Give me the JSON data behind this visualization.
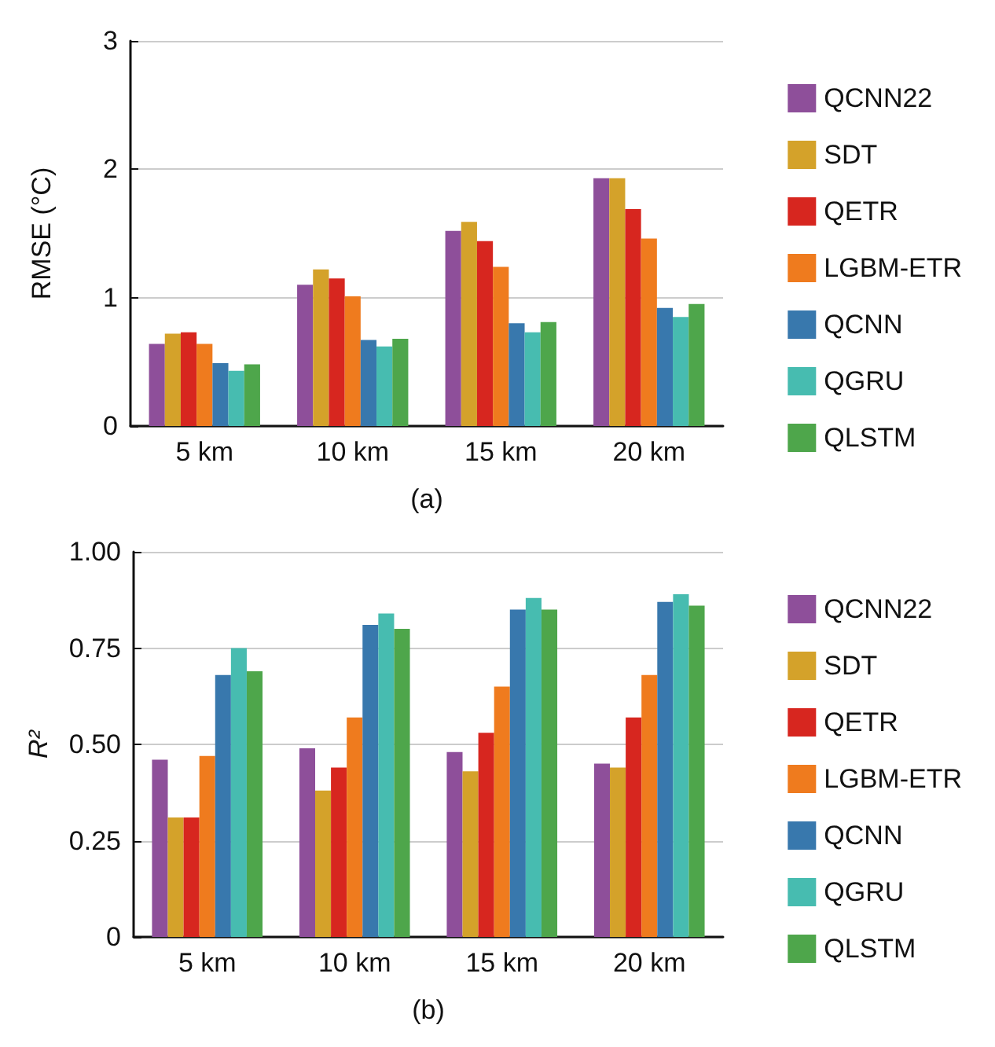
{
  "chart_data": [
    {
      "type": "bar",
      "ylabel": "RMSE (°C)",
      "xlabel": "(a)",
      "categories": [
        "5 km",
        "10 km",
        "15 km",
        "20 km"
      ],
      "ylim": [
        0,
        3
      ],
      "yticks": [
        0,
        1,
        2,
        3
      ],
      "grid": "y",
      "legend": "right",
      "series": [
        {
          "name": "QCNN22",
          "color": "#8e4f9a",
          "values": [
            0.64,
            1.1,
            1.52,
            1.93
          ]
        },
        {
          "name": "SDT",
          "color": "#d4a22a",
          "values": [
            0.72,
            1.22,
            1.59,
            1.93
          ]
        },
        {
          "name": "QETR",
          "color": "#d7261f",
          "values": [
            0.73,
            1.15,
            1.44,
            1.69
          ]
        },
        {
          "name": "LGBM-ETR",
          "color": "#ef7b1e",
          "values": [
            0.64,
            1.01,
            1.24,
            1.46
          ]
        },
        {
          "name": "QCNN",
          "color": "#3878ad",
          "values": [
            0.49,
            0.67,
            0.8,
            0.92
          ]
        },
        {
          "name": "QGRU",
          "color": "#47bcb0",
          "values": [
            0.43,
            0.62,
            0.73,
            0.85
          ]
        },
        {
          "name": "QLSTM",
          "color": "#4ea64b",
          "values": [
            0.48,
            0.68,
            0.81,
            0.95
          ]
        }
      ]
    },
    {
      "type": "bar",
      "ylabel": "R²",
      "xlabel": "(b)",
      "categories": [
        "5 km",
        "10 km",
        "15 km",
        "20 km"
      ],
      "ylim": [
        0,
        1
      ],
      "yticks": [
        {
          "value": 0,
          "label": "0"
        },
        {
          "value": 0.25,
          "label": "0.25"
        },
        {
          "value": 0.5,
          "label": "0.50"
        },
        {
          "value": 0.75,
          "label": "0.75"
        },
        {
          "value": 1,
          "label": "1.00"
        }
      ],
      "grid": "y",
      "legend": "right",
      "series": [
        {
          "name": "QCNN22",
          "color": "#8e4f9a",
          "values": [
            0.46,
            0.49,
            0.48,
            0.45
          ]
        },
        {
          "name": "SDT",
          "color": "#d4a22a",
          "values": [
            0.31,
            0.38,
            0.43,
            0.44
          ]
        },
        {
          "name": "QETR",
          "color": "#d7261f",
          "values": [
            0.31,
            0.44,
            0.53,
            0.57
          ]
        },
        {
          "name": "LGBM-ETR",
          "color": "#ef7b1e",
          "values": [
            0.47,
            0.57,
            0.65,
            0.68
          ]
        },
        {
          "name": "QCNN",
          "color": "#3878ad",
          "values": [
            0.68,
            0.81,
            0.85,
            0.87
          ]
        },
        {
          "name": "QGRU",
          "color": "#47bcb0",
          "values": [
            0.75,
            0.84,
            0.88,
            0.89
          ]
        },
        {
          "name": "QLSTM",
          "color": "#4ea64b",
          "values": [
            0.69,
            0.8,
            0.85,
            0.86
          ]
        }
      ]
    }
  ]
}
